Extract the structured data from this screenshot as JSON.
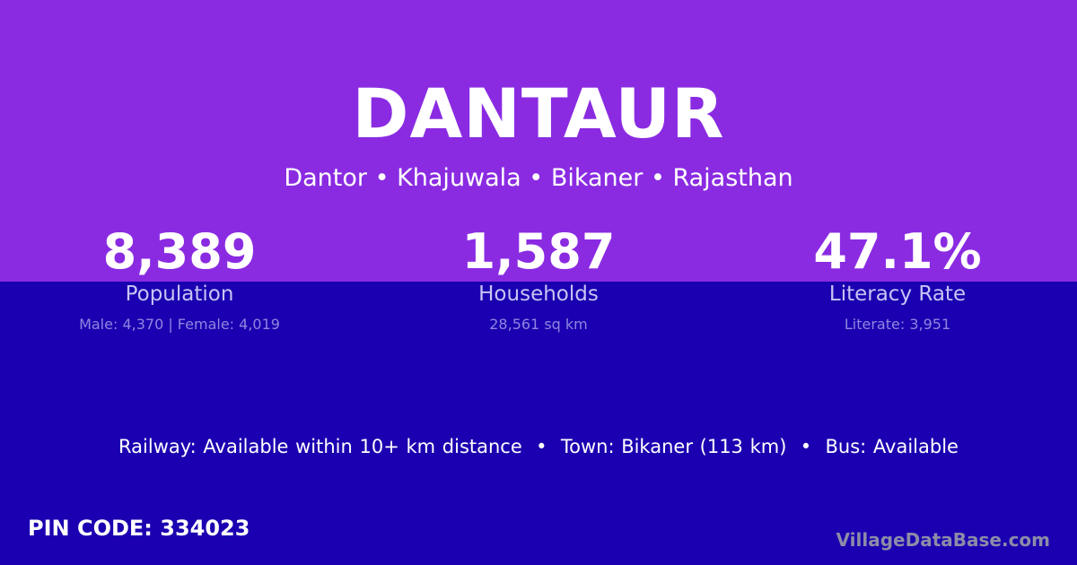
{
  "colors": {
    "top_band": "#8a2be2",
    "background": "#1a00b0",
    "brand": "#8c8ca8"
  },
  "village": {
    "name": "DANTAUR",
    "breadcrumb": "Dantor • Khajuwala • Bikaner • Rajasthan"
  },
  "stats": [
    {
      "value": "8,389",
      "label": "Population",
      "detail": "Male: 4,370 | Female: 4,019"
    },
    {
      "value": "1,587",
      "label": "Households",
      "detail": "28,561 sq km"
    },
    {
      "value": "47.1%",
      "label": "Literacy Rate",
      "detail": "Literate: 3,951"
    }
  ],
  "facilities": "Railway: Available within 10+ km distance  •  Town: Bikaner (113 km)  •  Bus: Available",
  "pin": "PIN CODE: 334023",
  "brand": "VillageDataBase.com"
}
